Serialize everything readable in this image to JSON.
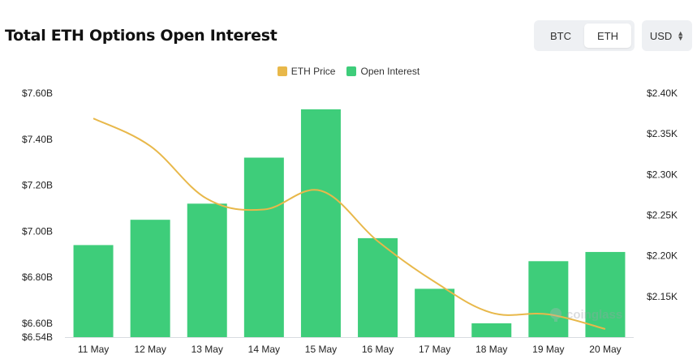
{
  "header": {
    "title": "Total ETH Options Open Interest"
  },
  "toggle": {
    "btc_label": "BTC",
    "eth_label": "ETH",
    "active": "ETH"
  },
  "currency": {
    "label": "USD"
  },
  "watermark": {
    "text": "coinglass"
  },
  "legend": [
    {
      "label": "ETH Price",
      "color": "#e8b84a"
    },
    {
      "label": "Open Interest",
      "color": "#3ecd7a"
    }
  ],
  "chart_data": {
    "type": "bar",
    "categories": [
      "11 May",
      "12 May",
      "13 May",
      "14 May",
      "15 May",
      "16 May",
      "17 May",
      "18 May",
      "19 May",
      "20 May"
    ],
    "series": [
      {
        "name": "Open Interest",
        "type": "bar",
        "axis": "left",
        "color": "#3ecd7a",
        "values": [
          6.94,
          7.05,
          7.12,
          7.32,
          7.53,
          6.97,
          6.75,
          6.6,
          6.87,
          6.91
        ]
      },
      {
        "name": "ETH Price",
        "type": "line",
        "axis": "right",
        "color": "#e8b84a",
        "values": [
          2.369,
          2.335,
          2.27,
          2.257,
          2.28,
          2.218,
          2.168,
          2.13,
          2.128,
          2.11
        ]
      }
    ],
    "left_axis": {
      "ticks": [
        "$7.60B",
        "$7.40B",
        "$7.20B",
        "$7.00B",
        "$6.80B",
        "$6.60B",
        "$6.54B"
      ],
      "tick_values": [
        7.6,
        7.4,
        7.2,
        7.0,
        6.8,
        6.6,
        6.54
      ],
      "range": [
        6.54,
        7.6
      ]
    },
    "right_axis": {
      "ticks": [
        "$2.40K",
        "$2.35K",
        "$2.30K",
        "$2.25K",
        "$2.20K",
        "$2.15K"
      ],
      "tick_values": [
        2.4,
        2.35,
        2.3,
        2.25,
        2.2,
        2.15
      ],
      "range": [
        2.1,
        2.4
      ]
    },
    "grid": false,
    "legend_position": "top-center"
  }
}
